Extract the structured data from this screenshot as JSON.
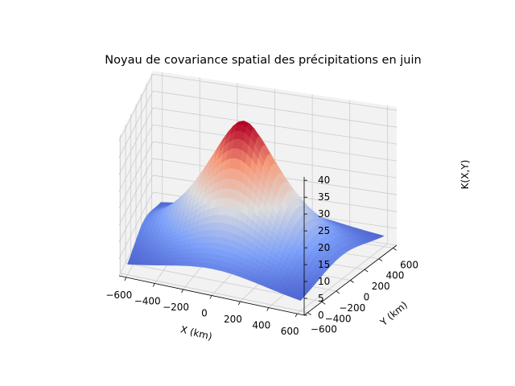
{
  "chart_data": {
    "type": "surface3d",
    "title": "Noyau de covariance spatial des précipitations en juin",
    "xlabel": "X (km)",
    "ylabel": "Y (km)",
    "zlabel": "K(X,Y)",
    "xlim": [
      -650,
      650
    ],
    "ylim": [
      -650,
      650
    ],
    "zlim": [
      0,
      41
    ],
    "xticks": [
      "−600",
      "−400",
      "−200",
      "0",
      "200",
      "400",
      "600"
    ],
    "xtick_values": [
      -600,
      -400,
      -200,
      0,
      200,
      400,
      600
    ],
    "yticks": [
      "−600",
      "−400",
      "−200",
      "0",
      "200",
      "400",
      "600"
    ],
    "ytick_values": [
      -600,
      -400,
      -200,
      0,
      200,
      400,
      600
    ],
    "zticks": [
      "0",
      "5",
      "10",
      "15",
      "20",
      "25",
      "30",
      "35",
      "40"
    ],
    "ztick_values": [
      0,
      5,
      10,
      15,
      20,
      25,
      30,
      35,
      40
    ],
    "surface": {
      "x_range": [
        -600,
        600
      ],
      "y_range": [
        -600,
        600
      ],
      "grid_steps": 40,
      "peak_value": 41,
      "peak_location": [
        0,
        0
      ],
      "edge_value": 2,
      "colormap": "coolwarm"
    },
    "grid": true,
    "pane_color": "#f2f2f2",
    "gridline_color": "#cccccc"
  }
}
